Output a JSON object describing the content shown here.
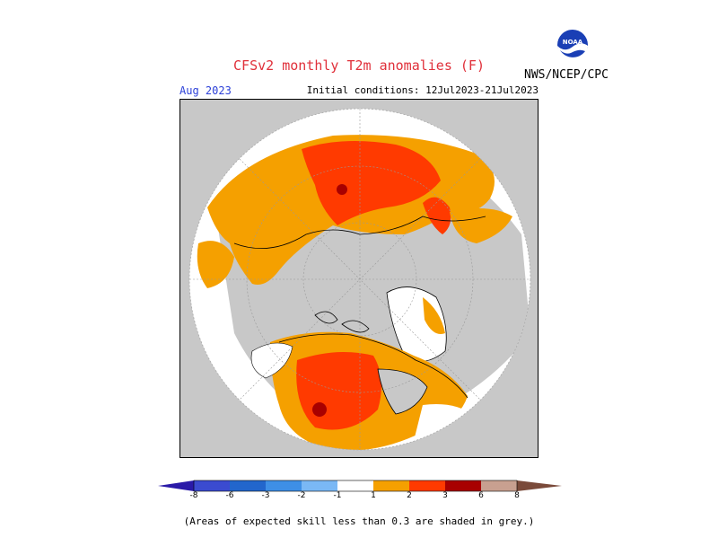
{
  "header": {
    "title": "CFSv2 monthly T2m anomalies (F)",
    "agency": "NWS/NCEP/CPC",
    "month": "Aug 2023",
    "initial_conditions": "Initial conditions: 12Jul2023-21Jul2023",
    "logo_text": "NOAA"
  },
  "legend": {
    "labels": [
      "-8",
      "-6",
      "-3",
      "-2",
      "-1",
      "1",
      "2",
      "3",
      "6",
      "8"
    ],
    "colors": {
      "le_neg8": "#2a1aa8",
      "neg8_neg6": "#3b4bd0",
      "neg6_neg3": "#2266cc",
      "neg3_neg2": "#3e8fe6",
      "neg2_neg1": "#7ab8f5",
      "neutral": "#ffffff",
      "p1_p2": "#f5a000",
      "p2_p3": "#ff3a00",
      "p3_p6": "#a80000",
      "p6_p8": "#c8a090",
      "ge_p8": "#7a4a3a"
    }
  },
  "map": {
    "low_skill_color": "#c8c8c8",
    "ocean_color": "#c8c8c8",
    "projection": "polar stereographic, north pole"
  },
  "footnote": "(Areas of expected skill less than 0.3 are shaded in grey.)"
}
